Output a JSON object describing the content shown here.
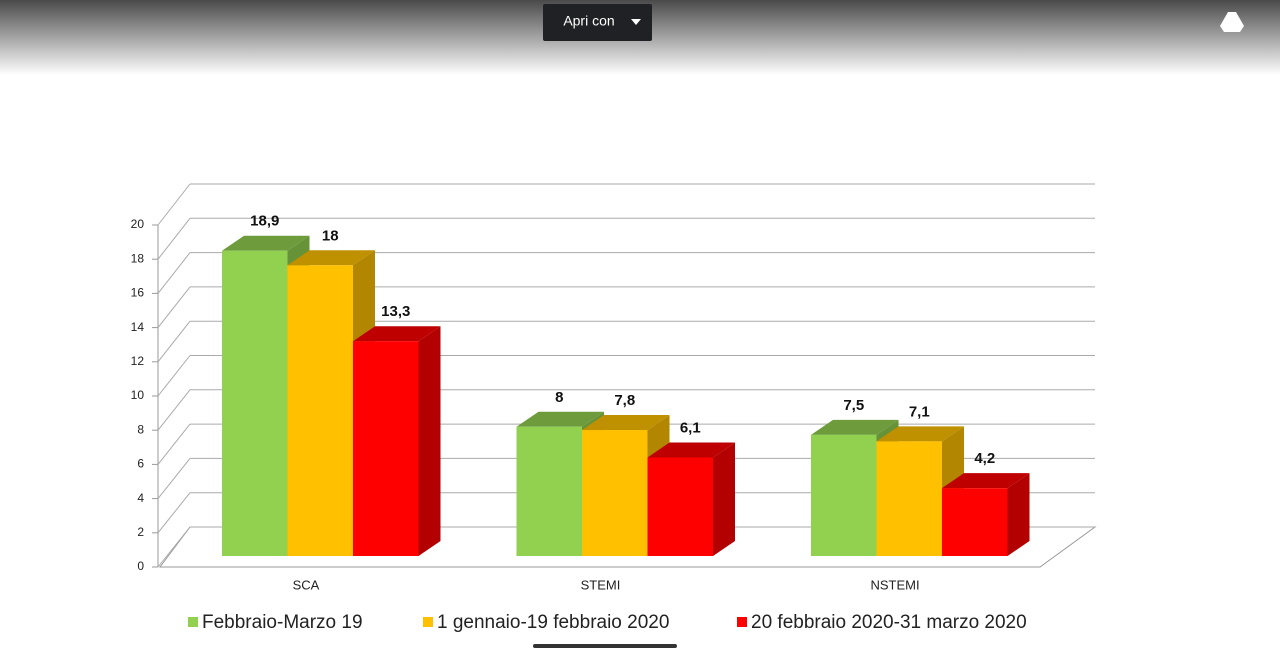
{
  "toolbar": {
    "button": "Apri con"
  },
  "chart_data": {
    "type": "bar3d",
    "categories": [
      "SCA",
      "STEMI",
      "NSTEMI"
    ],
    "series": [
      {
        "name": "Febbraio-Marzo 19",
        "color": "#92d050",
        "values": [
          18.9,
          8,
          7.5
        ],
        "value_labels": [
          "18,9",
          "8",
          "7,5"
        ]
      },
      {
        "name": "1 gennaio-19 febbraio 2020",
        "color": "#ffc000",
        "values": [
          18,
          7.8,
          7.1
        ],
        "value_labels": [
          "18",
          "7,8",
          "7,1"
        ]
      },
      {
        "name": "20 febbraio 2020-31 marzo 2020",
        "color": "#ff0000",
        "values": [
          13.3,
          6.1,
          4.2
        ],
        "value_labels": [
          "13,3",
          "6,1",
          "4,2"
        ]
      }
    ],
    "ylim": [
      0,
      20
    ],
    "yticks": [
      0,
      2,
      4,
      6,
      8,
      10,
      12,
      14,
      16,
      18,
      20
    ],
    "grid": true,
    "legend": "bottom"
  }
}
